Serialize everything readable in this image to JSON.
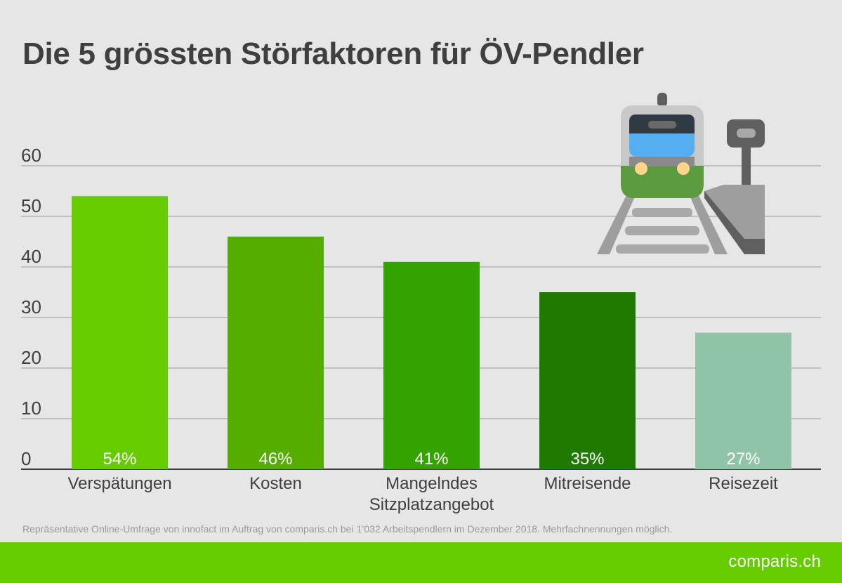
{
  "chart_data": {
    "type": "bar",
    "title": "Die 5 grössten Störfaktoren für ÖV-Pendler",
    "categories": [
      "Verspätungen",
      "Kosten",
      "Mangelndes Sitzplatzangebot",
      "Mitreisende",
      "Reisezeit"
    ],
    "category_lines": [
      [
        "Verspätungen"
      ],
      [
        "Kosten"
      ],
      [
        "Mangelndes",
        "Sitzplatzangebot"
      ],
      [
        "Mitreisende"
      ],
      [
        "Reisezeit"
      ]
    ],
    "values": [
      54,
      46,
      41,
      35,
      27
    ],
    "data_labels": [
      "54%",
      "46%",
      "41%",
      "35%",
      "27%"
    ],
    "bar_colors": [
      "#66cc00",
      "#55ad00",
      "#33a300",
      "#207a00",
      "#8fc4a8"
    ],
    "ylim": [
      0,
      60
    ],
    "yticks": [
      0,
      10,
      20,
      30,
      40,
      50,
      60
    ],
    "grid": true,
    "xlabel": "",
    "ylabel": ""
  },
  "footnote": "Repräsentative Online-Umfrage von innofact im Auftrag von comparis.ch bei 1’032 Arbeitspendlern im Dezember 2018. Mehrfachnennungen möglich.",
  "brand": "comparis.ch",
  "illustration": {
    "icon": "train-at-station-icon"
  },
  "colors": {
    "background": "#e6e6e6",
    "footer": "#66cc00",
    "text": "#3f3f3f"
  }
}
